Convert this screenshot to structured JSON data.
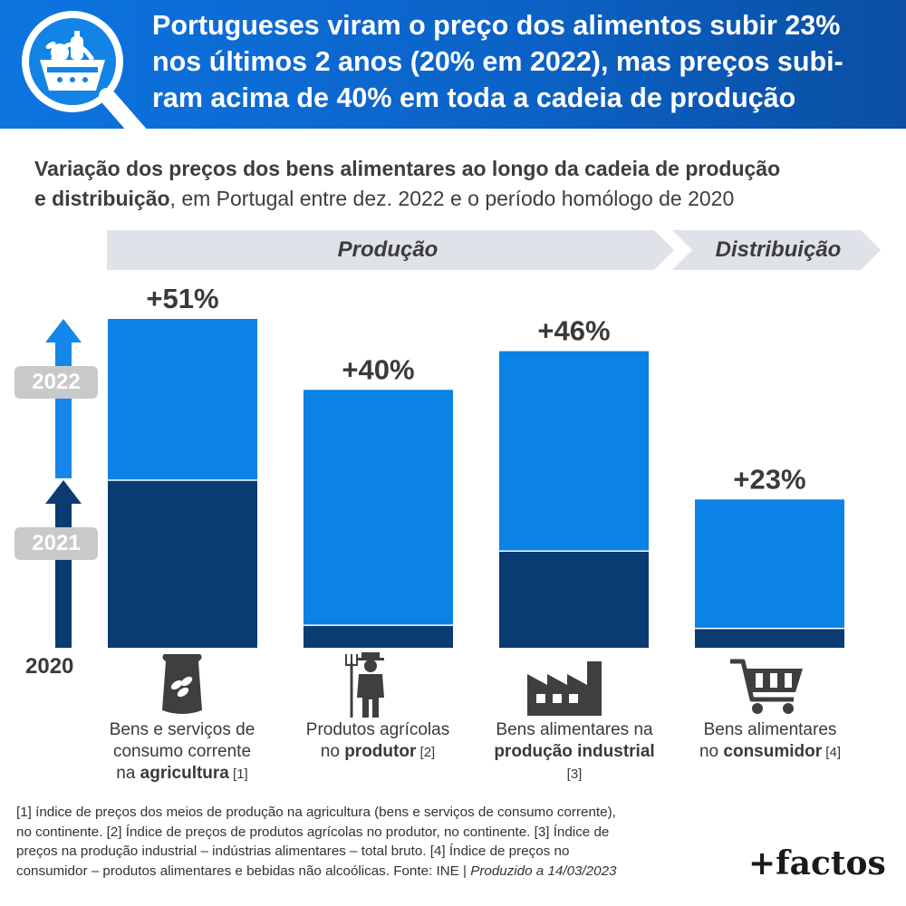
{
  "header": {
    "title_lines": [
      "Portugueses viram o preço dos alimentos subir 23%",
      "nos últimos 2 anos (20% em 2022), mas preços subi-",
      "ram acima de 40% em toda a cadeia de produção"
    ],
    "icon": "magnifier-food-basket-icon"
  },
  "subtitle": {
    "bold_1": "Variação dos preços dos bens alimentares ao longo da cadeia de produção",
    "bold_2": "e distribuição",
    "rest_2": ", em Portugal entre dez. 2022 e o período homólogo de 2020"
  },
  "phases": {
    "production": "Produção",
    "distribution": "Distribuição"
  },
  "legend_axis": {
    "year_2022": "2022",
    "year_2021": "2021",
    "year_2020": "2020"
  },
  "colors": {
    "bar_2022": "#0a82e6",
    "bar_2021": "#0b3b73",
    "header_blue": "#0b63c8",
    "phase_bg": "#dfe2e8",
    "year_tag": "#c9c9c9",
    "arrow_2022": "#1388e8",
    "arrow_2021": "#0b3b73"
  },
  "chart_data": {
    "type": "bar",
    "stacked": true,
    "baseline_year": "2020",
    "categories": [
      "Bens e serviços de consumo corrente na agricultura [1]",
      "Produtos agrícolas no produtor [2]",
      "Bens alimentares na produção industrial [3]",
      "Bens alimentares no consumidor [4]"
    ],
    "series": [
      {
        "name": "2021",
        "values": [
          26,
          3.5,
          15,
          3
        ]
      },
      {
        "name": "2022",
        "values": [
          25,
          36.5,
          31,
          20
        ]
      }
    ],
    "totals": [
      51,
      40,
      46,
      23
    ],
    "value_labels": [
      "+51%",
      "+40%",
      "+46%",
      "+23%"
    ],
    "ylim": [
      0,
      51
    ],
    "grid": false,
    "icons": [
      "fertilizer-bag-icon",
      "farmer-pitchfork-icon",
      "factory-icon",
      "shopping-cart-icon"
    ]
  },
  "categories_text": [
    {
      "lines": [
        [
          "Bens e serviços de",
          ""
        ],
        [
          "consumo corrente",
          ""
        ],
        [
          "na ",
          "agricultura",
          " [1]"
        ]
      ]
    },
    {
      "lines": [
        [
          "Produtos agrícolas",
          ""
        ],
        [
          "no ",
          "produtor",
          " [2]"
        ]
      ]
    },
    {
      "lines": [
        [
          "Bens alimentares na",
          ""
        ],
        [
          "",
          "produção industrial",
          ""
        ],
        [
          "[3]",
          ""
        ]
      ]
    },
    {
      "lines": [
        [
          "Bens alimentares",
          ""
        ],
        [
          "no ",
          "consumidor",
          " [4]"
        ]
      ]
    }
  ],
  "footnote": {
    "lines": [
      "[1] índice de preços dos meios de produção na agricultura (bens e serviços de consumo corrente),",
      "no continente. [2] Índice de preços de produtos agrícolas no produtor, no continente. [3] Índice de",
      "preços na produção industrial – indústrias alimentares – total bruto. [4] Índice de preços no"
    ],
    "last_line": "consumidor – produtos alimentares e bebidas não alcoólicas. Fonte: INE | ",
    "produced": "Produzido a 14/03/2023"
  },
  "brand": "+factos"
}
